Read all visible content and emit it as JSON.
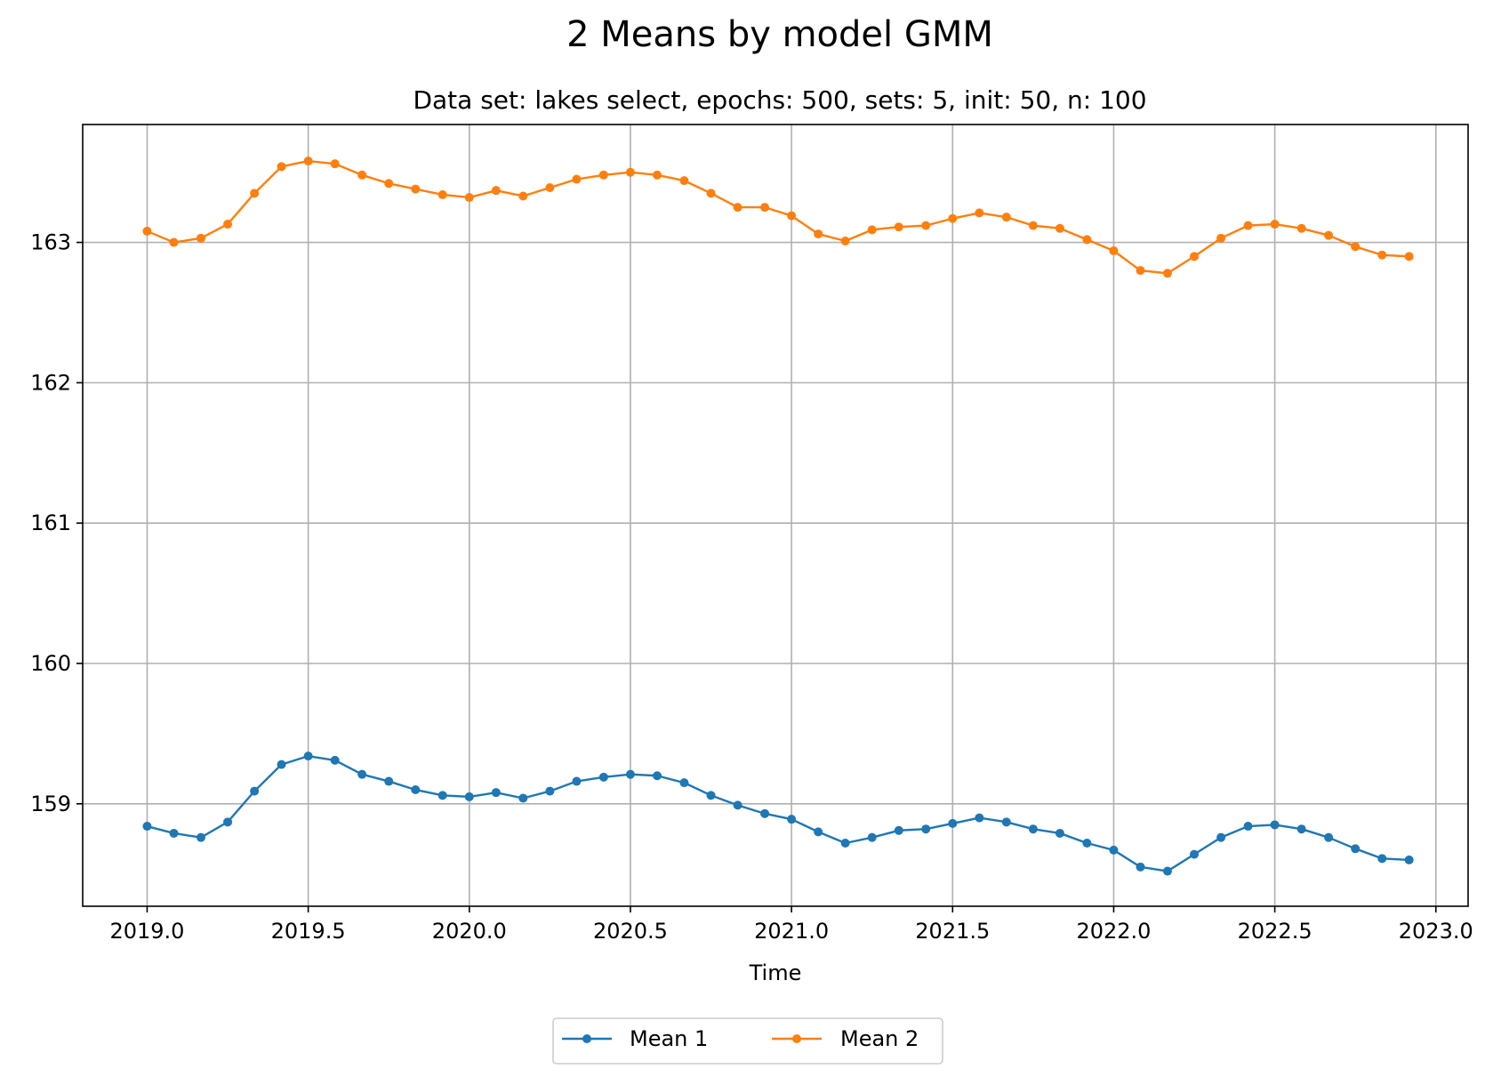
{
  "chart_data": {
    "type": "line",
    "title": "2 Means by model GMM",
    "subtitle": "Data set: lakes select, epochs: 500, sets: 5, init: 50, n: 100",
    "xlabel": "Time",
    "ylabel": "",
    "xlim": [
      2018.8,
      2023.1
    ],
    "ylim": [
      158.27,
      163.84
    ],
    "xticks": [
      2019.0,
      2019.5,
      2020.0,
      2020.5,
      2021.0,
      2021.5,
      2022.0,
      2022.5,
      2023.0
    ],
    "xtick_labels": [
      "2019.0",
      "2019.5",
      "2020.0",
      "2020.5",
      "2021.0",
      "2021.5",
      "2022.0",
      "2022.5",
      "2023.0"
    ],
    "yticks": [
      159,
      160,
      161,
      162,
      163
    ],
    "ytick_labels": [
      "159",
      "160",
      "161",
      "162",
      "163"
    ],
    "grid": true,
    "legend_position": "below-center",
    "x": [
      2019.0,
      2019.083,
      2019.167,
      2019.25,
      2019.333,
      2019.417,
      2019.5,
      2019.583,
      2019.667,
      2019.75,
      2019.833,
      2019.917,
      2020.0,
      2020.083,
      2020.167,
      2020.25,
      2020.333,
      2020.417,
      2020.5,
      2020.583,
      2020.667,
      2020.75,
      2020.833,
      2020.917,
      2021.0,
      2021.083,
      2021.167,
      2021.25,
      2021.333,
      2021.417,
      2021.5,
      2021.583,
      2021.667,
      2021.75,
      2021.833,
      2021.917,
      2022.0,
      2022.083,
      2022.167,
      2022.25,
      2022.333,
      2022.417,
      2022.5,
      2022.583,
      2022.667,
      2022.75,
      2022.833,
      2022.917
    ],
    "series": [
      {
        "name": "Mean 1",
        "color": "#1f77b4",
        "values": [
          158.84,
          158.79,
          158.76,
          158.87,
          159.09,
          159.28,
          159.34,
          159.31,
          159.21,
          159.16,
          159.1,
          159.06,
          159.05,
          159.08,
          159.04,
          159.09,
          159.16,
          159.19,
          159.21,
          159.2,
          159.15,
          159.06,
          158.99,
          158.93,
          158.89,
          158.8,
          158.72,
          158.76,
          158.81,
          158.82,
          158.86,
          158.9,
          158.87,
          158.82,
          158.79,
          158.72,
          158.67,
          158.55,
          158.52,
          158.64,
          158.76,
          158.84,
          158.85,
          158.82,
          158.76,
          158.68,
          158.61,
          158.6
        ]
      },
      {
        "name": "Mean 2",
        "color": "#ff7f0e",
        "values": [
          163.08,
          163.0,
          163.03,
          163.13,
          163.35,
          163.54,
          163.58,
          163.56,
          163.48,
          163.42,
          163.38,
          163.34,
          163.32,
          163.37,
          163.33,
          163.39,
          163.45,
          163.48,
          163.5,
          163.48,
          163.44,
          163.35,
          163.25,
          163.25,
          163.19,
          163.06,
          163.01,
          163.09,
          163.11,
          163.12,
          163.17,
          163.21,
          163.18,
          163.12,
          163.1,
          163.02,
          162.94,
          162.8,
          162.78,
          162.9,
          163.03,
          163.12,
          163.13,
          163.1,
          163.05,
          162.97,
          162.91,
          162.9
        ]
      }
    ]
  }
}
